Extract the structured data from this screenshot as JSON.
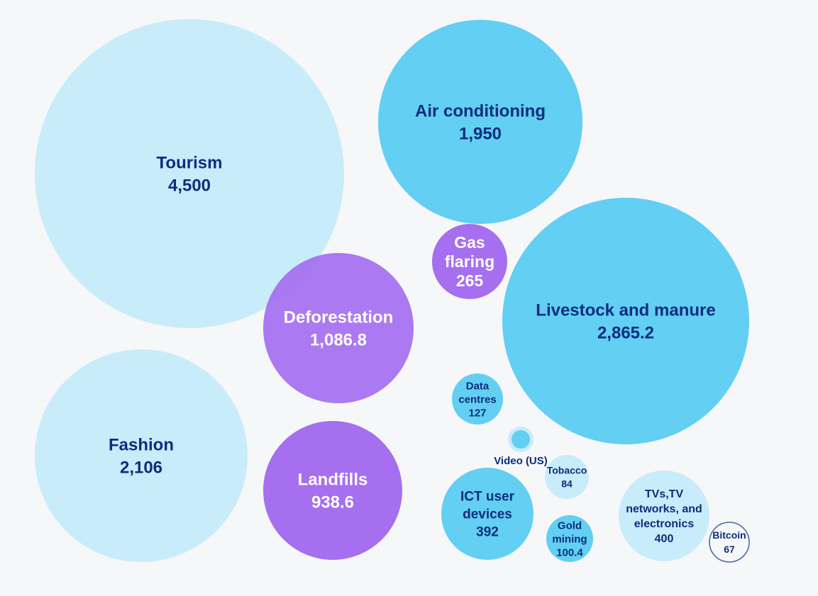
{
  "chart_data": {
    "type": "bubble",
    "title": "",
    "colors": {
      "light": "#c8ecfa",
      "medium": "#62cff3",
      "purple": "#a56ff0",
      "text_dark": "#0d2d7d",
      "text_white": "#ffffff",
      "outline": "#4a6aa8"
    },
    "bubbles": [
      {
        "label": "Tourism",
        "lines": [
          "Tourism"
        ],
        "value": 4500,
        "display": "4,500",
        "color": "light"
      },
      {
        "label": "Air conditioning",
        "lines": [
          "Air conditioning"
        ],
        "value": 1950,
        "display": "1,950",
        "color": "medium"
      },
      {
        "label": "Livestock and manure",
        "lines": [
          "Livestock and manure"
        ],
        "value": 2865.2,
        "display": "2,865.2",
        "color": "medium"
      },
      {
        "label": "Deforestation",
        "lines": [
          "Deforestation"
        ],
        "value": 1086.8,
        "display": "1,086.8",
        "color": "purple"
      },
      {
        "label": "Gas flaring",
        "lines": [
          "Gas",
          "flaring"
        ],
        "value": 265,
        "display": "265",
        "color": "purple"
      },
      {
        "label": "Fashion",
        "lines": [
          "Fashion"
        ],
        "value": 2106,
        "display": "2,106",
        "color": "light"
      },
      {
        "label": "Landfills",
        "lines": [
          "Landfills"
        ],
        "value": 938.6,
        "display": "938.6",
        "color": "purple"
      },
      {
        "label": "Data centres",
        "lines": [
          "Data",
          "centres"
        ],
        "value": 127,
        "display": "127",
        "color": "medium"
      },
      {
        "label": "Video (US)",
        "lines": [
          "Video (US)"
        ],
        "value": null,
        "display": "",
        "color": "medium"
      },
      {
        "label": "Tobacco",
        "lines": [
          "Tobacco"
        ],
        "value": 84,
        "display": "84",
        "color": "light"
      },
      {
        "label": "ICT user devices",
        "lines": [
          "ICT user",
          "devices"
        ],
        "value": 392,
        "display": "392",
        "color": "medium"
      },
      {
        "label": "Gold mining",
        "lines": [
          "Gold",
          "mining"
        ],
        "value": 100.4,
        "display": "100.4",
        "color": "medium"
      },
      {
        "label": "TVs, TV networks, and electronics",
        "lines": [
          "TVs,TV",
          "networks, and",
          "electronics"
        ],
        "value": 400,
        "display": "400",
        "color": "light"
      },
      {
        "label": "Bitcoin",
        "lines": [
          "Bitcoin"
        ],
        "value": 67,
        "display": "67",
        "color": "outline"
      }
    ]
  }
}
